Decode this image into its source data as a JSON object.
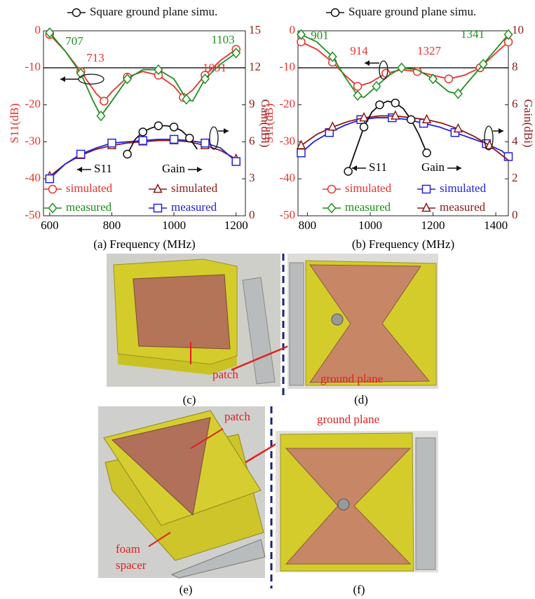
{
  "chart_data": [
    {
      "type": "line",
      "caption": "(a)",
      "xlabel": "Frequency (MHz)",
      "ylabel": "S11(dB)",
      "y2label": "Gain(dBi)",
      "xlim": [
        580,
        1230
      ],
      "xticks": [
        600,
        800,
        1000,
        1200
      ],
      "ylim": [
        -50,
        0
      ],
      "yticks": [
        -50,
        -40,
        -30,
        -20,
        -10,
        0
      ],
      "y2lim": [
        0,
        15
      ],
      "y2ticks": [
        0,
        3,
        6,
        9,
        12,
        15
      ],
      "hline": -10,
      "series": [
        {
          "name": "simulated",
          "color": "#e8322d",
          "marker": "circle",
          "axis": "y",
          "x": [
            600,
            650,
            700,
            750,
            775,
            800,
            850,
            900,
            950,
            1000,
            1030,
            1060,
            1100,
            1150,
            1200
          ],
          "values": [
            -1,
            -5.5,
            -11,
            -17,
            -19,
            -16.5,
            -12.5,
            -11,
            -12,
            -15,
            -18,
            -16,
            -12,
            -8,
            -5
          ]
        },
        {
          "name": "measured",
          "color": "#1f8f1f",
          "marker": "diamond",
          "axis": "y",
          "x": [
            600,
            650,
            700,
            740,
            765,
            800,
            850,
            900,
            950,
            1000,
            1040,
            1060,
            1100,
            1150,
            1200
          ],
          "values": [
            -0.5,
            -5.5,
            -11.5,
            -19,
            -23,
            -19,
            -13,
            -10.5,
            -10.5,
            -13,
            -18.5,
            -19,
            -13,
            -9,
            -6
          ]
        },
        {
          "name": "simulated",
          "color": "#8b1a1a",
          "marker": "triangle",
          "axis": "y2",
          "x": [
            600,
            650,
            700,
            750,
            800,
            850,
            900,
            950,
            1000,
            1050,
            1100,
            1150,
            1200
          ],
          "values": [
            3.2,
            4.2,
            4.9,
            5.4,
            5.7,
            5.9,
            6.0,
            6.1,
            6.1,
            6.0,
            5.7,
            5.3,
            4.6
          ]
        },
        {
          "name": "measured",
          "color": "#2222dd",
          "marker": "square",
          "axis": "y2",
          "x": [
            600,
            650,
            700,
            750,
            800,
            850,
            900,
            950,
            1000,
            1050,
            1100,
            1150,
            1200
          ],
          "values": [
            3.0,
            4.2,
            5.0,
            5.5,
            5.9,
            6.0,
            6.1,
            6.2,
            6.2,
            6.1,
            5.9,
            5.5,
            4.4
          ]
        },
        {
          "name": "Square ground plane simu.",
          "color": "#111111",
          "marker": "circle",
          "axis": "y2",
          "x": [
            850,
            875,
            900,
            925,
            950,
            975,
            1000,
            1025,
            1050,
            1075
          ],
          "values": [
            5.0,
            6.2,
            6.8,
            7.1,
            7.3,
            7.3,
            7.2,
            6.9,
            6.3,
            5.4
          ]
        }
      ],
      "annotations": [
        {
          "text": "707",
          "color": "#1f8f1f"
        },
        {
          "text": "713",
          "color": "#e8322d"
        },
        {
          "text": "1091",
          "color": "#e8322d"
        },
        {
          "text": "1103",
          "color": "#1f8f1f"
        }
      ],
      "arrow_labels": [
        "S11",
        "Gain"
      ]
    },
    {
      "type": "line",
      "caption": "(b)",
      "xlabel": "Frequency (MHz)",
      "ylabel": "S11(dB)",
      "y2label": "Gain(dBi)",
      "xlim": [
        770,
        1440
      ],
      "xticks": [
        800,
        1000,
        1200,
        1400
      ],
      "ylim": [
        -50,
        0
      ],
      "yticks": [
        -50,
        -40,
        -30,
        -20,
        -10,
        0
      ],
      "y2lim": [
        0,
        10
      ],
      "y2ticks": [
        0,
        2,
        4,
        6,
        8,
        10
      ],
      "hline": -10,
      "series": [
        {
          "name": "simulated",
          "color": "#e8322d",
          "marker": "circle",
          "axis": "y",
          "x": [
            780,
            830,
            880,
            920,
            960,
            1000,
            1050,
            1100,
            1150,
            1200,
            1250,
            1300,
            1350,
            1400,
            1440
          ],
          "values": [
            -3,
            -5,
            -8.5,
            -12,
            -15,
            -14,
            -11.5,
            -10.5,
            -11,
            -12,
            -13,
            -12,
            -10,
            -6,
            -3
          ]
        },
        {
          "name": "measured",
          "color": "#1f8f1f",
          "marker": "diamond",
          "axis": "y",
          "x": [
            780,
            830,
            880,
            920,
            960,
            980,
            1020,
            1060,
            1100,
            1150,
            1200,
            1250,
            1280,
            1320,
            1360,
            1400,
            1440
          ],
          "values": [
            -1,
            -3,
            -7,
            -12.5,
            -17.5,
            -18,
            -15,
            -12,
            -10,
            -10.5,
            -13,
            -16.5,
            -17,
            -13,
            -9,
            -5,
            -1
          ]
        },
        {
          "name": "simulated",
          "color": "#2222dd",
          "marker": "square",
          "axis": "y2",
          "x": [
            780,
            820,
            870,
            920,
            970,
            1020,
            1070,
            1120,
            1170,
            1220,
            1270,
            1320,
            1370,
            1420,
            1440
          ],
          "values": [
            3.4,
            4.0,
            4.5,
            4.9,
            5.2,
            5.3,
            5.3,
            5.2,
            5.0,
            4.8,
            4.5,
            4.2,
            3.9,
            3.5,
            3.2
          ]
        },
        {
          "name": "measured",
          "color": "#8b1a1a",
          "marker": "triangle",
          "axis": "y2",
          "x": [
            780,
            830,
            880,
            930,
            980,
            1030,
            1080,
            1130,
            1180,
            1230,
            1280,
            1330,
            1380,
            1440
          ],
          "values": [
            3.8,
            4.4,
            4.8,
            5.1,
            5.3,
            5.4,
            5.4,
            5.3,
            5.2,
            5.0,
            4.7,
            4.3,
            3.8,
            3.0
          ]
        },
        {
          "name": "Square ground plane simu.",
          "color": "#111111",
          "marker": "circle",
          "axis": "y2",
          "x": [
            930,
            955,
            980,
            1005,
            1030,
            1055,
            1080,
            1105,
            1130,
            1155,
            1180
          ],
          "values": [
            2.4,
            3.6,
            4.8,
            5.6,
            6.0,
            6.2,
            6.1,
            5.8,
            5.2,
            4.4,
            3.4
          ]
        }
      ],
      "annotations": [
        {
          "text": "901",
          "color": "#1f8f1f"
        },
        {
          "text": "914",
          "color": "#e8322d"
        },
        {
          "text": "1327",
          "color": "#e8322d"
        },
        {
          "text": "1341",
          "color": "#1f8f1f"
        }
      ],
      "arrow_labels": [
        "S11",
        "Gain"
      ]
    }
  ],
  "photos": {
    "captions": [
      "(c)",
      "(d)",
      "(e)",
      "(f)"
    ],
    "c_label": "patch",
    "d_label": "ground plane",
    "e_label": "patch",
    "e_spacer": [
      "foam",
      "spacer"
    ],
    "f_label": "ground plane"
  }
}
